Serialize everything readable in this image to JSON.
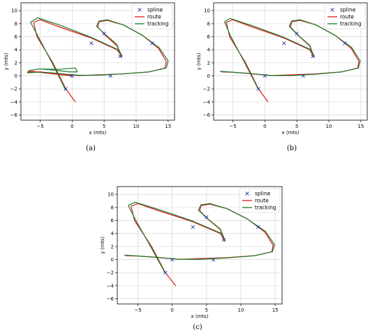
{
  "colors": {
    "spline": "#1f3fa8",
    "route": "#e01a1a",
    "tracking": "#1a7a2a",
    "grid": "#d0d0d0"
  },
  "chart_data": [
    {
      "type": "line",
      "caption": "(a)",
      "xlabel": "x (mts)",
      "ylabel": "y (mts)",
      "xlim": [
        -8,
        16
      ],
      "ylim": [
        -6.8,
        11.2
      ],
      "xticks": [
        -5,
        0,
        5,
        10,
        15
      ],
      "yticks": [
        -6,
        -4,
        -2,
        0,
        2,
        4,
        6,
        8,
        10
      ],
      "grid": true,
      "legend_position": "top-right",
      "legend": [
        "spline",
        "route",
        "tracking"
      ],
      "series": [
        {
          "name": "spline",
          "style": "marker-x",
          "x": [
            -1,
            0,
            3,
            5,
            7.5,
            12.5,
            6,
            0
          ],
          "y": [
            -2,
            0,
            5,
            6.5,
            3,
            5,
            0,
            0
          ]
        },
        {
          "name": "route",
          "style": "line",
          "x": [
            0.5,
            -1,
            -3,
            -5.5,
            -6,
            -5,
            -2,
            3,
            7,
            7.8,
            7,
            5.2,
            4,
            4.2,
            5.5,
            8,
            11,
            13.5,
            14.7,
            14.5,
            12,
            8,
            4,
            1,
            -2,
            -5,
            -6.8,
            -6.3,
            -4,
            0
          ],
          "y": [
            -4,
            -2,
            2,
            6,
            8.2,
            8.6,
            7.5,
            5.8,
            4,
            3,
            4.6,
            6.2,
            7.5,
            8.3,
            8.5,
            7.8,
            6.2,
            4.2,
            2.2,
            1.2,
            0.6,
            0.3,
            0.15,
            0.05,
            0.3,
            0.6,
            0.6,
            0.7,
            0.4,
            0
          ]
        },
        {
          "name": "tracking",
          "style": "line",
          "x": [
            -1,
            -3.2,
            -5.4,
            -6.5,
            -5.4,
            -2,
            3,
            7.2,
            7.7,
            7,
            5,
            3.8,
            4.2,
            5.5,
            8,
            11,
            13.6,
            15,
            14.7,
            12,
            8,
            4,
            1,
            -1,
            -3,
            -5.5,
            -7,
            -6.8,
            -5.2,
            -2,
            0.5,
            0.8,
            -0.5,
            -2.5,
            -5
          ],
          "y": [
            -2.2,
            2.1,
            6.2,
            8.2,
            8.9,
            7.8,
            5.9,
            4,
            2.9,
            4.8,
            6.5,
            7.6,
            8.4,
            8.6,
            7.8,
            6.2,
            4.3,
            2.3,
            1.2,
            0.6,
            0.3,
            0.1,
            0.1,
            0.25,
            0.45,
            0.55,
            0.45,
            0.8,
            1.05,
            1,
            1.2,
            0.6,
            0.6,
            0.85,
            1.05
          ]
        }
      ]
    },
    {
      "type": "line",
      "caption": "(b)",
      "xlabel": "x (mts)",
      "ylabel": "y (mts)",
      "xlim": [
        -8,
        16
      ],
      "ylim": [
        -6.8,
        11.2
      ],
      "xticks": [
        -5,
        0,
        5,
        10,
        15
      ],
      "yticks": [
        -6,
        -4,
        -2,
        0,
        2,
        4,
        6,
        8,
        10
      ],
      "grid": true,
      "legend_position": "top-right",
      "legend": [
        "spline",
        "route",
        "tracking"
      ],
      "series": [
        {
          "name": "spline",
          "style": "marker-x",
          "x": [
            -1,
            0,
            3,
            5,
            7.5,
            12.5,
            6
          ],
          "y": [
            -2,
            0,
            5,
            6.5,
            3,
            5,
            0
          ]
        },
        {
          "name": "route",
          "style": "line",
          "x": [
            0.5,
            -1,
            -3,
            -5.5,
            -6,
            -5,
            -2,
            3,
            7,
            7.6,
            7,
            5.2,
            4,
            4.2,
            5.5,
            8,
            11,
            13.5,
            14.7,
            14.5,
            12,
            8,
            4,
            1,
            -2,
            -5,
            -6.8
          ],
          "y": [
            -4,
            -2,
            2,
            6,
            8.2,
            8.6,
            7.5,
            5.8,
            4,
            3,
            4.6,
            6.2,
            7.5,
            8.3,
            8.5,
            7.8,
            6.2,
            4.2,
            2.2,
            1.2,
            0.6,
            0.3,
            0.15,
            0.05,
            0.3,
            0.55,
            0.6
          ]
        },
        {
          "name": "tracking",
          "style": "line",
          "x": [
            -1,
            -3.2,
            -5.4,
            -6.3,
            -5.4,
            -2,
            3,
            7.2,
            7.7,
            7,
            5,
            3.8,
            4.2,
            5.5,
            8,
            11,
            13.6,
            14.9,
            14.6,
            12,
            8,
            4,
            1,
            -2,
            -5,
            -7
          ],
          "y": [
            -2.1,
            2.1,
            6.2,
            8.3,
            8.8,
            7.7,
            5.9,
            4,
            2.9,
            4.7,
            6.4,
            7.6,
            8.4,
            8.6,
            7.8,
            6.2,
            4.3,
            2.3,
            1.2,
            0.6,
            0.25,
            0.05,
            0.05,
            0.35,
            0.55,
            0.7
          ]
        }
      ]
    },
    {
      "type": "line",
      "caption": "(c)",
      "xlabel": "x (mts)",
      "ylabel": "y (mts)",
      "xlim": [
        -8,
        16
      ],
      "ylim": [
        -6.8,
        11.2
      ],
      "xticks": [
        -5,
        0,
        5,
        10,
        15
      ],
      "yticks": [
        -6,
        -4,
        -2,
        0,
        2,
        4,
        6,
        8,
        10
      ],
      "grid": true,
      "legend_position": "top-right",
      "legend": [
        "spline",
        "route",
        "tracking"
      ],
      "series": [
        {
          "name": "spline",
          "style": "marker-x",
          "x": [
            -1,
            0,
            3,
            5,
            7.5,
            12.5,
            6
          ],
          "y": [
            -2,
            0,
            5,
            6.5,
            3,
            5,
            0
          ]
        },
        {
          "name": "route",
          "style": "line",
          "x": [
            0.5,
            -1,
            -3,
            -5.5,
            -6,
            -5,
            -2,
            3,
            7,
            7.6,
            7,
            5.2,
            4,
            4.2,
            5.5,
            8,
            11,
            13.5,
            14.7,
            14.5,
            12,
            8,
            4,
            1,
            -2,
            -5,
            -6.8
          ],
          "y": [
            -4,
            -2,
            2,
            6,
            8.2,
            8.6,
            7.5,
            5.8,
            4,
            3,
            4.6,
            6.2,
            7.5,
            8.3,
            8.5,
            7.8,
            6.2,
            4.2,
            2.2,
            1.2,
            0.6,
            0.3,
            0.15,
            0.05,
            0.3,
            0.55,
            0.6
          ]
        },
        {
          "name": "tracking",
          "style": "line",
          "x": [
            -1,
            -3.2,
            -5.4,
            -6.4,
            -5.4,
            -2,
            3,
            7.2,
            7.7,
            7,
            5,
            3.8,
            4.2,
            5.5,
            8,
            11,
            13.6,
            14.9,
            14.6,
            12,
            8,
            4,
            1,
            -2,
            -5,
            -7
          ],
          "y": [
            -2.1,
            2.1,
            6.2,
            8.3,
            8.8,
            7.7,
            5.9,
            4,
            2.9,
            4.7,
            6.4,
            7.6,
            8.4,
            8.6,
            7.8,
            6.2,
            4.3,
            2.3,
            1.2,
            0.6,
            0.25,
            0.05,
            0.05,
            0.35,
            0.55,
            0.7
          ]
        }
      ]
    }
  ]
}
